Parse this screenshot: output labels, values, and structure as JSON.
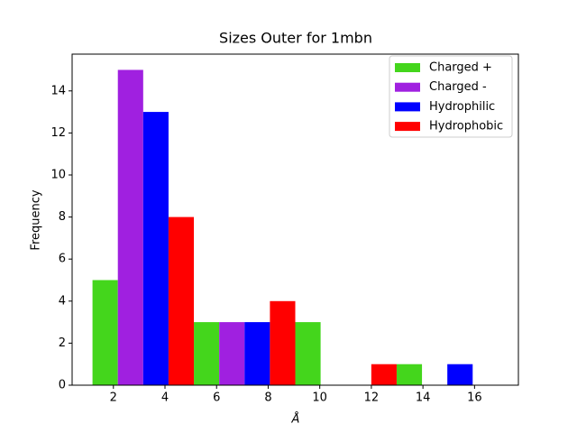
{
  "chart_data": {
    "type": "histogram",
    "title": "Sizes Outer for 1mbn",
    "xlabel": "Å",
    "ylabel": "Frequency",
    "bins": [
      1.19,
      5.12,
      9.05,
      12.98,
      16.91
    ],
    "series": [
      {
        "name": "Charged +",
        "color": "#44d61c",
        "values": [
          5,
          3,
          3,
          1
        ]
      },
      {
        "name": "Charged -",
        "color": "#a020e0",
        "values": [
          15,
          3,
          0,
          0
        ]
      },
      {
        "name": "Hydrophilic",
        "color": "#0000ff",
        "values": [
          13,
          3,
          0,
          1
        ]
      },
      {
        "name": "Hydrophobic",
        "color": "#ff0000",
        "values": [
          8,
          4,
          1,
          0
        ]
      }
    ],
    "xlim": [
      0.4,
      17.7
    ],
    "xticks": [
      2,
      4,
      6,
      8,
      10,
      12,
      14,
      16
    ],
    "ylim": [
      0,
      15.75
    ],
    "yticks": [
      0,
      2,
      4,
      6,
      8,
      10,
      12,
      14
    ],
    "grid": false,
    "legend": "upper right"
  }
}
